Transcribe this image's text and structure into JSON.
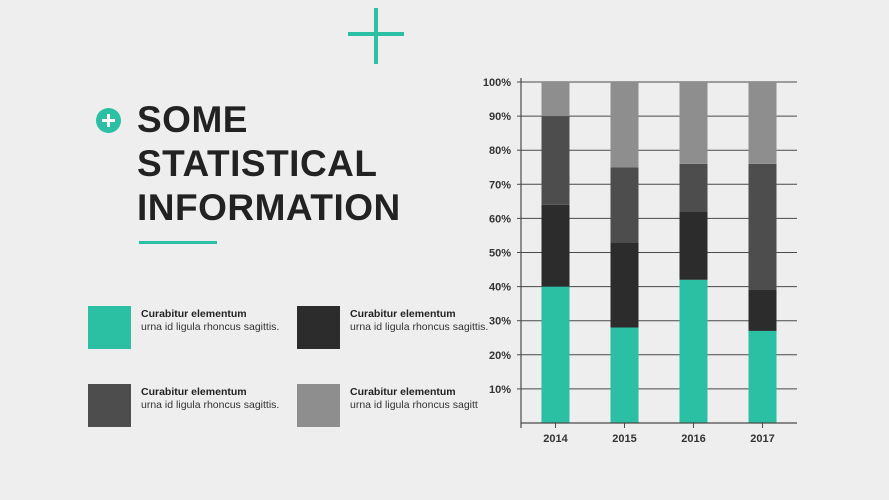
{
  "heading": {
    "lines": [
      "SOME",
      "STATISTICAL",
      "INFORMATION"
    ]
  },
  "legend": [
    {
      "title": "Curabitur elementum",
      "desc": "urna id ligula rhoncus sagittis.",
      "color": "#2bbfa4"
    },
    {
      "title": "Curabitur elementum",
      "desc": "urna id ligula rhoncus sagittis.",
      "color": "#2c2c2c"
    },
    {
      "title": "Curabitur elementum",
      "desc": "urna id ligula rhoncus sagittis.",
      "color": "#4d4d4d"
    },
    {
      "title": "Curabitur elementum",
      "desc": "urna id ligula rhoncus sagitt",
      "color": "#8e8e8e"
    }
  ],
  "chart_data": {
    "type": "bar",
    "stacked": true,
    "categories": [
      "2014",
      "2015",
      "2016",
      "2017"
    ],
    "y_ticks": [
      "10%",
      "20%",
      "30%",
      "40%",
      "50%",
      "60%",
      "70%",
      "80%",
      "90%",
      "100%"
    ],
    "ylim": [
      0,
      100
    ],
    "grid": true,
    "series": [
      {
        "color": "#2bbfa4",
        "values": [
          40,
          28,
          42,
          27
        ]
      },
      {
        "color": "#2c2c2c",
        "values": [
          24,
          25,
          20,
          12
        ]
      },
      {
        "color": "#4d4d4d",
        "values": [
          26,
          22,
          14,
          37
        ]
      },
      {
        "color": "#8e8e8e",
        "values": [
          10,
          25,
          24,
          24
        ]
      }
    ]
  }
}
